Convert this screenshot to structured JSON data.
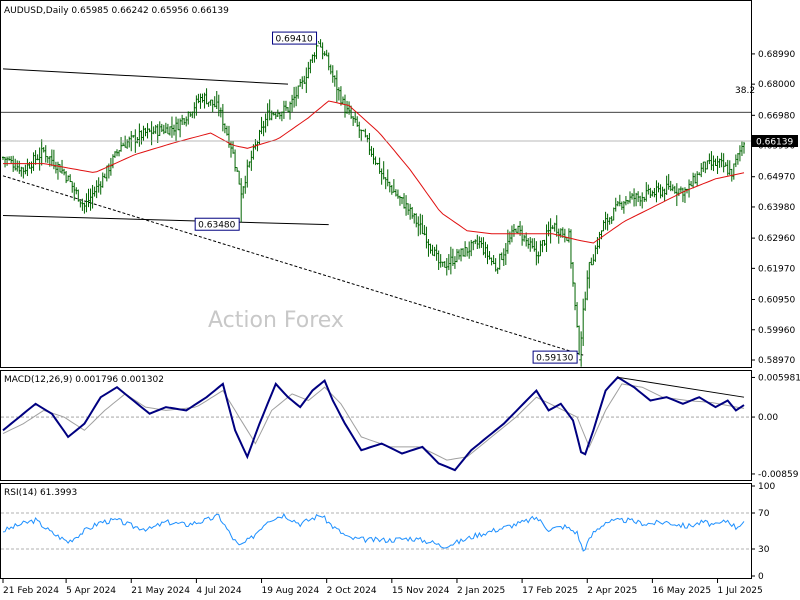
{
  "colors": {
    "bars": "#006400",
    "sma": "#e01010",
    "macd": "#000080",
    "signal": "#a0a0a0",
    "rsi": "#1e90ff",
    "trend": "#000000",
    "panel_border": "#000000"
  },
  "chart_data": [
    {
      "type": "line",
      "title": "AUDUSD,Daily 0.65985 0.66242 0.65956 0.66139",
      "watermark": "Action Forex",
      "ylim": [
        0.5897,
        0.701
      ],
      "y_ticks": [
        "0.68990",
        "0.68000",
        "0.66980",
        "0.65990",
        "0.64970",
        "0.63980",
        "0.62960",
        "0.61970",
        "0.60950",
        "0.59960",
        "0.58970"
      ],
      "y_tick_values": [
        0.6899,
        0.68,
        0.6698,
        0.6599,
        0.6497,
        0.6398,
        0.6296,
        0.6197,
        0.6095,
        0.5996,
        0.5897
      ],
      "x_ticks": [
        "21 Feb 2024",
        "5 Apr 2024",
        "21 May 2024",
        "4 Jul 2024",
        "19 Aug 2024",
        "2 Oct 2024",
        "15 Nov 2024",
        "2 Jan 2025",
        "17 Feb 2025",
        "2 Apr 2025",
        "16 May 2025",
        "1 Jul 2025"
      ],
      "x_tick_bars": [
        0,
        31,
        63,
        95,
        127,
        159,
        191,
        223,
        255,
        287,
        319,
        351
      ],
      "bar_count": 365,
      "current_price": "0.66139",
      "fib_label": "38.2",
      "fib_level": 0.6708,
      "price_anchors": [
        [
          0,
          0.656
        ],
        [
          10,
          0.652
        ],
        [
          20,
          0.658
        ],
        [
          30,
          0.651
        ],
        [
          40,
          0.64
        ],
        [
          48,
          0.648
        ],
        [
          58,
          0.66
        ],
        [
          70,
          0.664
        ],
        [
          85,
          0.666
        ],
        [
          98,
          0.676
        ],
        [
          106,
          0.672
        ],
        [
          112,
          0.66
        ],
        [
          117,
          0.645
        ],
        [
          122,
          0.656
        ],
        [
          130,
          0.67
        ],
        [
          140,
          0.672
        ],
        [
          147,
          0.68
        ],
        [
          155,
          0.6941
        ],
        [
          160,
          0.686
        ],
        [
          168,
          0.672
        ],
        [
          178,
          0.662
        ],
        [
          188,
          0.648
        ],
        [
          198,
          0.64
        ],
        [
          208,
          0.63
        ],
        [
          215,
          0.62
        ],
        [
          226,
          0.625
        ],
        [
          234,
          0.628
        ],
        [
          242,
          0.62
        ],
        [
          252,
          0.633
        ],
        [
          262,
          0.624
        ],
        [
          270,
          0.634
        ],
        [
          278,
          0.63
        ],
        [
          283,
          0.5913
        ],
        [
          287,
          0.618
        ],
        [
          295,
          0.634
        ],
        [
          305,
          0.642
        ],
        [
          318,
          0.644
        ],
        [
          328,
          0.646
        ],
        [
          336,
          0.645
        ],
        [
          344,
          0.653
        ],
        [
          352,
          0.654
        ],
        [
          358,
          0.651
        ],
        [
          364,
          0.6614
        ]
      ],
      "sma_anchors": [
        [
          0,
          0.654
        ],
        [
          20,
          0.654
        ],
        [
          45,
          0.651
        ],
        [
          65,
          0.657
        ],
        [
          85,
          0.661
        ],
        [
          102,
          0.664
        ],
        [
          113,
          0.66
        ],
        [
          120,
          0.659
        ],
        [
          135,
          0.662
        ],
        [
          150,
          0.669
        ],
        [
          160,
          0.6745
        ],
        [
          170,
          0.673
        ],
        [
          185,
          0.664
        ],
        [
          200,
          0.652
        ],
        [
          215,
          0.638
        ],
        [
          228,
          0.632
        ],
        [
          240,
          0.631
        ],
        [
          255,
          0.631
        ],
        [
          270,
          0.631
        ],
        [
          282,
          0.629
        ],
        [
          290,
          0.628
        ],
        [
          305,
          0.635
        ],
        [
          320,
          0.64
        ],
        [
          335,
          0.645
        ],
        [
          350,
          0.649
        ],
        [
          364,
          0.651
        ]
      ],
      "annotations": [
        {
          "text": "0.69410",
          "bar": 155,
          "price": 0.6941
        },
        {
          "text": "0.63480",
          "bar": 117,
          "price": 0.6348
        },
        {
          "text": "0.59130",
          "bar": 283,
          "price": 0.5913
        }
      ],
      "trendlines": [
        {
          "style": "solid",
          "points": [
            [
              0,
              0.685
            ],
            [
              140,
              0.68
            ]
          ]
        },
        {
          "style": "solid",
          "points": [
            [
              0,
              0.637
            ],
            [
              160,
              0.634
            ]
          ]
        },
        {
          "style": "dashed",
          "points": [
            [
              0,
              0.65
            ],
            [
              285,
              0.5913
            ]
          ]
        }
      ]
    },
    {
      "type": "line",
      "title": "MACD(12,26,9) 0.001796 0.001302",
      "ylim": [
        -0.0092,
        0.0065
      ],
      "y_ticks": [
        "0.005981",
        "0.00",
        "-0.00859"
      ],
      "y_tick_values": [
        0.005981,
        0.0,
        -0.00859
      ],
      "series": [
        {
          "name": "MACD",
          "anchors": [
            [
              0,
              -0.002
            ],
            [
              8,
              0.0
            ],
            [
              16,
              0.002
            ],
            [
              24,
              0.0005
            ],
            [
              32,
              -0.003
            ],
            [
              40,
              -0.001
            ],
            [
              48,
              0.003
            ],
            [
              56,
              0.0045
            ],
            [
              64,
              0.0025
            ],
            [
              72,
              0.0005
            ],
            [
              80,
              0.0015
            ],
            [
              90,
              0.001
            ],
            [
              100,
              0.003
            ],
            [
              108,
              0.005
            ],
            [
              114,
              -0.002
            ],
            [
              120,
              -0.006
            ],
            [
              126,
              -0.001
            ],
            [
              134,
              0.005
            ],
            [
              140,
              0.003
            ],
            [
              146,
              0.0015
            ],
            [
              152,
              0.004
            ],
            [
              158,
              0.0055
            ],
            [
              162,
              0.0025
            ],
            [
              168,
              -0.001
            ],
            [
              176,
              -0.005
            ],
            [
              186,
              -0.004
            ],
            [
              196,
              -0.0055
            ],
            [
              206,
              -0.0045
            ],
            [
              214,
              -0.007
            ],
            [
              222,
              -0.008
            ],
            [
              230,
              -0.005
            ],
            [
              238,
              -0.003
            ],
            [
              246,
              -0.001
            ],
            [
              254,
              0.0015
            ],
            [
              262,
              0.004
            ],
            [
              268,
              0.001
            ],
            [
              274,
              0.002
            ],
            [
              280,
              -0.0005
            ],
            [
              285,
              -0.0065
            ],
            [
              290,
              -0.002
            ],
            [
              296,
              0.004
            ],
            [
              302,
              0.006
            ],
            [
              310,
              0.0045
            ],
            [
              318,
              0.0025
            ],
            [
              326,
              0.003
            ],
            [
              334,
              0.002
            ],
            [
              342,
              0.003
            ],
            [
              350,
              0.0015
            ],
            [
              356,
              0.0025
            ],
            [
              360,
              0.001
            ],
            [
              364,
              0.0018
            ]
          ]
        },
        {
          "name": "Signal",
          "anchors": [
            [
              0,
              -0.0025
            ],
            [
              10,
              -0.001
            ],
            [
              20,
              0.001
            ],
            [
              30,
              0.0
            ],
            [
              40,
              -0.002
            ],
            [
              50,
              0.001
            ],
            [
              60,
              0.0035
            ],
            [
              70,
              0.0015
            ],
            [
              80,
              0.001
            ],
            [
              95,
              0.0015
            ],
            [
              108,
              0.004
            ],
            [
              116,
              0.0
            ],
            [
              124,
              -0.004
            ],
            [
              132,
              0.001
            ],
            [
              142,
              0.0035
            ],
            [
              150,
              0.0025
            ],
            [
              158,
              0.0045
            ],
            [
              166,
              0.002
            ],
            [
              176,
              -0.003
            ],
            [
              190,
              -0.0045
            ],
            [
              205,
              -0.0045
            ],
            [
              218,
              -0.0065
            ],
            [
              228,
              -0.006
            ],
            [
              240,
              -0.003
            ],
            [
              252,
              0.0
            ],
            [
              262,
              0.003
            ],
            [
              272,
              0.0015
            ],
            [
              282,
              0.0
            ],
            [
              288,
              -0.0045
            ],
            [
              296,
              0.001
            ],
            [
              304,
              0.005
            ],
            [
              314,
              0.0045
            ],
            [
              324,
              0.003
            ],
            [
              336,
              0.0025
            ],
            [
              348,
              0.0022
            ],
            [
              364,
              0.0013
            ]
          ]
        }
      ],
      "trendline": {
        "style": "solid",
        "points": [
          [
            302,
            0.006
          ],
          [
            364,
            0.003
          ]
        ]
      }
    },
    {
      "type": "line",
      "title": "RSI(14) 61.3993",
      "ylim": [
        0,
        100
      ],
      "y_ticks": [
        "100",
        "70",
        "30",
        "0"
      ],
      "y_tick_values": [
        100,
        70,
        30,
        0
      ],
      "series": [
        {
          "name": "RSI",
          "anchors": [
            [
              0,
              50
            ],
            [
              8,
              57
            ],
            [
              16,
              62
            ],
            [
              24,
              48
            ],
            [
              32,
              38
            ],
            [
              40,
              50
            ],
            [
              48,
              60
            ],
            [
              56,
              62
            ],
            [
              64,
              55
            ],
            [
              72,
              52
            ],
            [
              80,
              60
            ],
            [
              90,
              57
            ],
            [
              100,
              62
            ],
            [
              106,
              67
            ],
            [
              112,
              45
            ],
            [
              116,
              33
            ],
            [
              122,
              42
            ],
            [
              130,
              62
            ],
            [
              138,
              68
            ],
            [
              146,
              58
            ],
            [
              152,
              64
            ],
            [
              156,
              68
            ],
            [
              162,
              55
            ],
            [
              170,
              42
            ],
            [
              180,
              40
            ],
            [
              190,
              40
            ],
            [
              200,
              42
            ],
            [
              210,
              38
            ],
            [
              216,
              33
            ],
            [
              224,
              38
            ],
            [
              232,
              45
            ],
            [
              240,
              50
            ],
            [
              248,
              55
            ],
            [
              256,
              60
            ],
            [
              262,
              65
            ],
            [
              268,
              52
            ],
            [
              276,
              55
            ],
            [
              282,
              48
            ],
            [
              285,
              28
            ],
            [
              290,
              48
            ],
            [
              296,
              60
            ],
            [
              306,
              62
            ],
            [
              316,
              58
            ],
            [
              326,
              60
            ],
            [
              336,
              55
            ],
            [
              344,
              60
            ],
            [
              350,
              56
            ],
            [
              356,
              62
            ],
            [
              360,
              54
            ],
            [
              364,
              61
            ]
          ]
        }
      ]
    }
  ]
}
